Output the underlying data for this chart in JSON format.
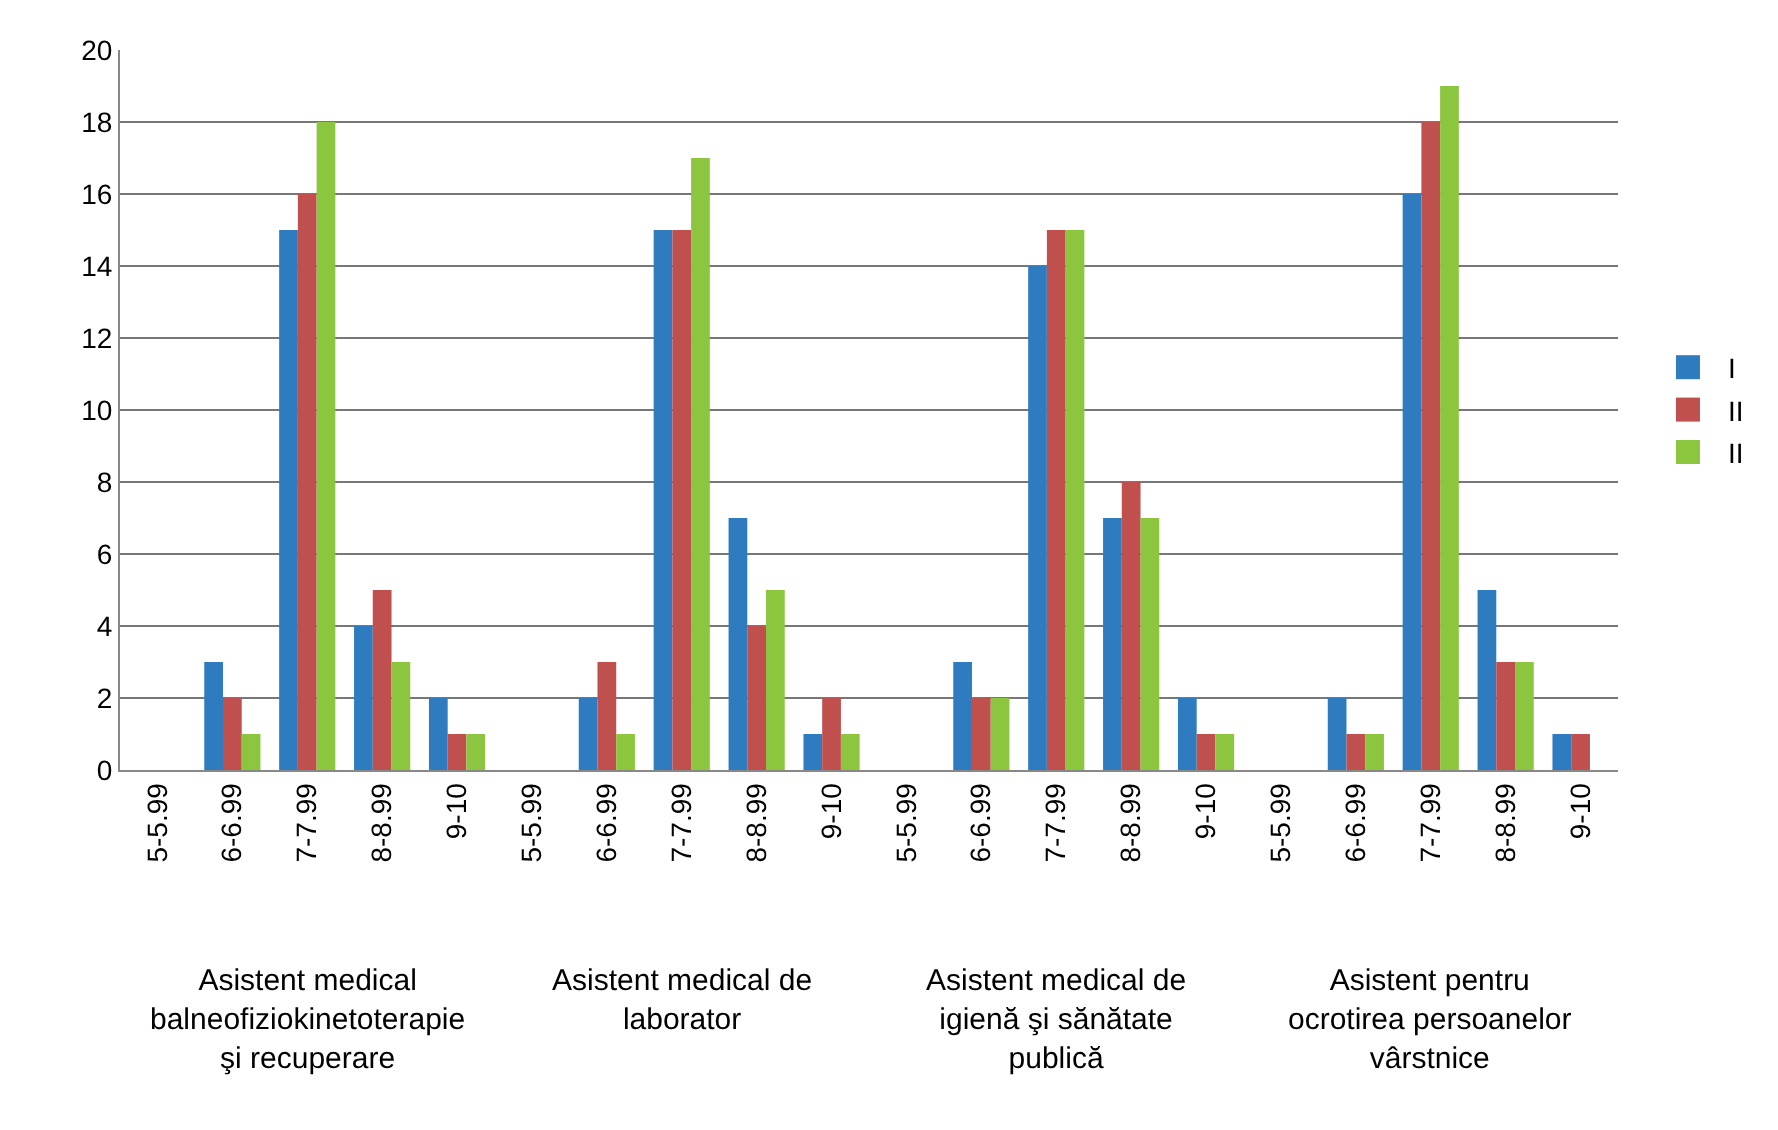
{
  "chart_data": {
    "type": "bar",
    "categories": [
      "5-5.99",
      "6-6.99",
      "7-7.99",
      "8-8.99",
      "9-10",
      "5-5.99",
      "6-6.99",
      "7-7.99",
      "8-8.99",
      "9-10",
      "5-5.99",
      "6-6.99",
      "7-7.99",
      "8-8.99",
      "9-10",
      "5-5.99",
      "6-6.99",
      "7-7.99",
      "8-8.99",
      "9-10"
    ],
    "series": [
      {
        "name": "I",
        "color": "#2e7cbf",
        "values": [
          0,
          3,
          15,
          4,
          2,
          0,
          2,
          15,
          7,
          1,
          0,
          3,
          14,
          7,
          2,
          0,
          2,
          16,
          5,
          1
        ]
      },
      {
        "name": "II",
        "color": "#c0504d",
        "values": [
          0,
          2,
          16,
          5,
          1,
          0,
          3,
          15,
          4,
          2,
          0,
          2,
          15,
          8,
          1,
          0,
          1,
          18,
          3,
          1
        ]
      },
      {
        "name": "II",
        "color": "#8cc63f",
        "values": [
          0,
          1,
          18,
          3,
          1,
          0,
          1,
          17,
          5,
          1,
          0,
          2,
          15,
          7,
          1,
          0,
          1,
          19,
          3,
          0
        ]
      }
    ],
    "annotations": [
      "Asistent medical balneofiziokinetoterapie şi recuperare",
      "Asistent medical de laborator",
      "Asistent medical de igienă şi sănătate publică",
      "Asistent pentru ocrotirea persoanelor vârstnice"
    ],
    "ylim": [
      0,
      20
    ],
    "yticks": [
      0,
      2,
      4,
      6,
      8,
      10,
      12,
      14,
      16,
      18,
      20
    ],
    "grid": "y",
    "legend": "right"
  }
}
